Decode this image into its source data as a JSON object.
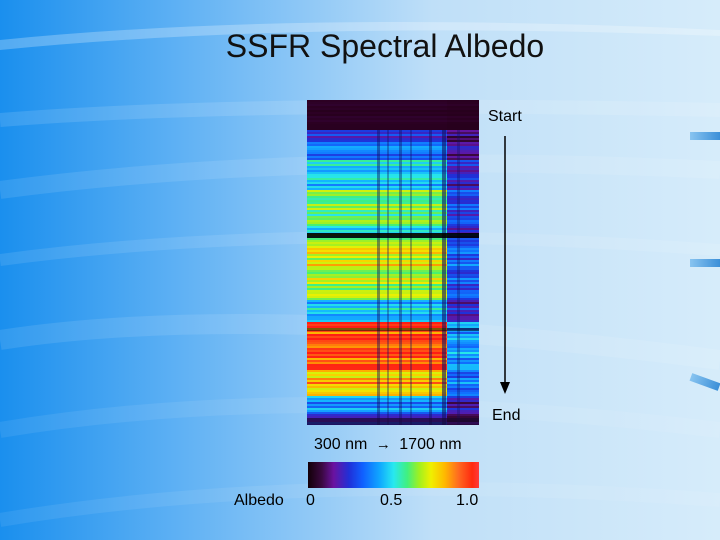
{
  "slide": {
    "title": "SSFR Spectral Albedo",
    "start_label": "Start",
    "end_label": "End",
    "wavelength_start": "300 nm",
    "wavelength_arrow": "→",
    "wavelength_end": "1700 nm",
    "colorbar_label": "Albedo",
    "colorbar_ticks": [
      "0",
      "0.5",
      "1.0"
    ]
  },
  "colors": {
    "background_left": "#1a8fee",
    "background_right": "#d6ecfa",
    "title_text": "#111111"
  }
}
